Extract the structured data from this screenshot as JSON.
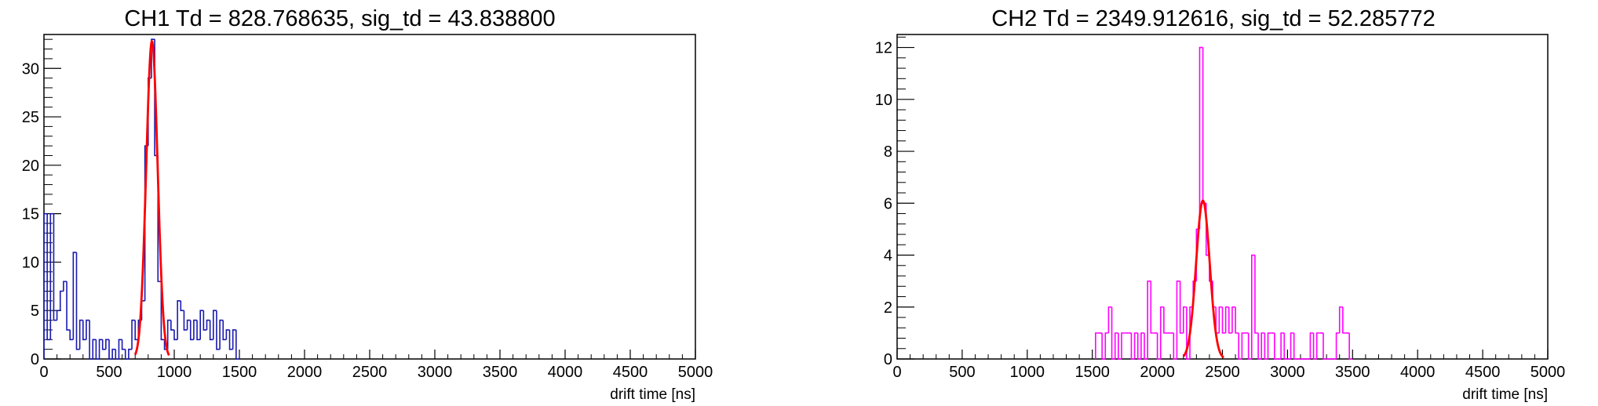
{
  "chart_data": [
    {
      "type": "histogram",
      "title": "CH1 Td = 828.768635, sig_td = 43.838800",
      "xlabel": "drift time [ns]",
      "ylabel": "",
      "xlim": [
        0,
        5000
      ],
      "ylim": [
        0,
        33.5
      ],
      "xticks": [
        0,
        500,
        1000,
        1500,
        2000,
        2500,
        3000,
        3500,
        4000,
        4500,
        5000
      ],
      "yticks": [
        0,
        5,
        10,
        15,
        20,
        25,
        30
      ],
      "bin_width": 25,
      "colors": {
        "histogram": "#1a1ab0",
        "fit": "#ff0000"
      },
      "series": [
        {
          "kind": "histogram",
          "bins": [
            {
              "x": 0,
              "y": 15
            },
            {
              "x": 25,
              "y": 2
            },
            {
              "x": 50,
              "y": 15
            },
            {
              "x": 75,
              "y": 4
            },
            {
              "x": 100,
              "y": 5
            },
            {
              "x": 125,
              "y": 7
            },
            {
              "x": 150,
              "y": 8
            },
            {
              "x": 175,
              "y": 3
            },
            {
              "x": 200,
              "y": 2
            },
            {
              "x": 225,
              "y": 11
            },
            {
              "x": 250,
              "y": 1
            },
            {
              "x": 275,
              "y": 4
            },
            {
              "x": 300,
              "y": 2
            },
            {
              "x": 325,
              "y": 4
            },
            {
              "x": 350,
              "y": 0
            },
            {
              "x": 375,
              "y": 2
            },
            {
              "x": 400,
              "y": 0
            },
            {
              "x": 425,
              "y": 2
            },
            {
              "x": 450,
              "y": 1
            },
            {
              "x": 475,
              "y": 2
            },
            {
              "x": 500,
              "y": 0
            },
            {
              "x": 525,
              "y": 1
            },
            {
              "x": 550,
              "y": 0
            },
            {
              "x": 575,
              "y": 2
            },
            {
              "x": 600,
              "y": 1
            },
            {
              "x": 625,
              "y": 0
            },
            {
              "x": 650,
              "y": 1
            },
            {
              "x": 675,
              "y": 4
            },
            {
              "x": 700,
              "y": 2
            },
            {
              "x": 725,
              "y": 4
            },
            {
              "x": 750,
              "y": 6
            },
            {
              "x": 775,
              "y": 22
            },
            {
              "x": 800,
              "y": 29
            },
            {
              "x": 825,
              "y": 33
            },
            {
              "x": 850,
              "y": 21
            },
            {
              "x": 875,
              "y": 8
            },
            {
              "x": 900,
              "y": 2
            },
            {
              "x": 925,
              "y": 1
            },
            {
              "x": 950,
              "y": 4
            },
            {
              "x": 975,
              "y": 3
            },
            {
              "x": 1000,
              "y": 2
            },
            {
              "x": 1025,
              "y": 6
            },
            {
              "x": 1050,
              "y": 5
            },
            {
              "x": 1075,
              "y": 3
            },
            {
              "x": 1100,
              "y": 4
            },
            {
              "x": 1125,
              "y": 2
            },
            {
              "x": 1150,
              "y": 4
            },
            {
              "x": 1175,
              "y": 2
            },
            {
              "x": 1200,
              "y": 5
            },
            {
              "x": 1225,
              "y": 3
            },
            {
              "x": 1250,
              "y": 4
            },
            {
              "x": 1275,
              "y": 2
            },
            {
              "x": 1300,
              "y": 5
            },
            {
              "x": 1325,
              "y": 1
            },
            {
              "x": 1350,
              "y": 4
            },
            {
              "x": 1375,
              "y": 2
            },
            {
              "x": 1400,
              "y": 3
            },
            {
              "x": 1425,
              "y": 1
            },
            {
              "x": 1450,
              "y": 3
            },
            {
              "x": 1475,
              "y": 0
            }
          ]
        },
        {
          "kind": "gaussian_fit",
          "amplitude": 32.8,
          "mean": 828.768635,
          "sigma": 43.8388,
          "x_range": [
            700,
            960
          ]
        }
      ]
    },
    {
      "type": "histogram",
      "title": "CH2 Td = 2349.912616, sig_td = 52.285772",
      "xlabel": "drift time [ns]",
      "ylabel": "",
      "xlim": [
        0,
        5000
      ],
      "ylim": [
        0,
        12.5
      ],
      "xticks": [
        0,
        500,
        1000,
        1500,
        2000,
        2500,
        3000,
        3500,
        4000,
        4500,
        5000
      ],
      "yticks": [
        0,
        2,
        4,
        6,
        8,
        10,
        12
      ],
      "bin_width": 25,
      "colors": {
        "histogram": "#ff00ff",
        "fit": "#ff0000"
      },
      "series": [
        {
          "kind": "histogram",
          "bins": [
            {
              "x": 1525,
              "y": 1
            },
            {
              "x": 1550,
              "y": 1
            },
            {
              "x": 1575,
              "y": 0
            },
            {
              "x": 1600,
              "y": 1
            },
            {
              "x": 1625,
              "y": 2
            },
            {
              "x": 1650,
              "y": 0
            },
            {
              "x": 1675,
              "y": 1
            },
            {
              "x": 1700,
              "y": 0
            },
            {
              "x": 1725,
              "y": 1
            },
            {
              "x": 1750,
              "y": 1
            },
            {
              "x": 1775,
              "y": 1
            },
            {
              "x": 1800,
              "y": 0
            },
            {
              "x": 1825,
              "y": 1
            },
            {
              "x": 1850,
              "y": 0
            },
            {
              "x": 1875,
              "y": 1
            },
            {
              "x": 1900,
              "y": 0
            },
            {
              "x": 1925,
              "y": 3
            },
            {
              "x": 1950,
              "y": 1
            },
            {
              "x": 1975,
              "y": 1
            },
            {
              "x": 2000,
              "y": 0
            },
            {
              "x": 2025,
              "y": 2
            },
            {
              "x": 2050,
              "y": 1
            },
            {
              "x": 2075,
              "y": 1
            },
            {
              "x": 2100,
              "y": 1
            },
            {
              "x": 2125,
              "y": 0
            },
            {
              "x": 2150,
              "y": 3
            },
            {
              "x": 2175,
              "y": 1
            },
            {
              "x": 2200,
              "y": 2
            },
            {
              "x": 2225,
              "y": 0
            },
            {
              "x": 2250,
              "y": 2
            },
            {
              "x": 2275,
              "y": 3
            },
            {
              "x": 2300,
              "y": 5
            },
            {
              "x": 2325,
              "y": 12
            },
            {
              "x": 2350,
              "y": 6
            },
            {
              "x": 2375,
              "y": 4
            },
            {
              "x": 2400,
              "y": 3
            },
            {
              "x": 2425,
              "y": 2
            },
            {
              "x": 2450,
              "y": 1
            },
            {
              "x": 2475,
              "y": 2
            },
            {
              "x": 2500,
              "y": 1
            },
            {
              "x": 2525,
              "y": 2
            },
            {
              "x": 2550,
              "y": 1
            },
            {
              "x": 2575,
              "y": 2
            },
            {
              "x": 2600,
              "y": 1
            },
            {
              "x": 2625,
              "y": 0
            },
            {
              "x": 2650,
              "y": 1
            },
            {
              "x": 2675,
              "y": 1
            },
            {
              "x": 2700,
              "y": 0
            },
            {
              "x": 2725,
              "y": 4
            },
            {
              "x": 2750,
              "y": 1
            },
            {
              "x": 2775,
              "y": 0
            },
            {
              "x": 2800,
              "y": 1
            },
            {
              "x": 2825,
              "y": 0
            },
            {
              "x": 2850,
              "y": 1
            },
            {
              "x": 2875,
              "y": 1
            },
            {
              "x": 2900,
              "y": 0
            },
            {
              "x": 2925,
              "y": 0
            },
            {
              "x": 2950,
              "y": 1
            },
            {
              "x": 2975,
              "y": 0
            },
            {
              "x": 3000,
              "y": 0
            },
            {
              "x": 3025,
              "y": 1
            },
            {
              "x": 3050,
              "y": 0
            },
            {
              "x": 3075,
              "y": 0
            },
            {
              "x": 3100,
              "y": 0
            },
            {
              "x": 3125,
              "y": 0
            },
            {
              "x": 3150,
              "y": 0
            },
            {
              "x": 3175,
              "y": 1
            },
            {
              "x": 3200,
              "y": 0
            },
            {
              "x": 3225,
              "y": 1
            },
            {
              "x": 3250,
              "y": 1
            },
            {
              "x": 3275,
              "y": 0
            },
            {
              "x": 3300,
              "y": 0
            },
            {
              "x": 3325,
              "y": 0
            },
            {
              "x": 3350,
              "y": 0
            },
            {
              "x": 3375,
              "y": 1
            },
            {
              "x": 3400,
              "y": 2
            },
            {
              "x": 3425,
              "y": 1
            },
            {
              "x": 3450,
              "y": 1
            },
            {
              "x": 3475,
              "y": 0
            }
          ]
        },
        {
          "kind": "gaussian_fit",
          "amplitude": 6.1,
          "mean": 2349.912616,
          "sigma": 52.285772,
          "x_range": [
            2200,
            2510
          ]
        }
      ]
    }
  ]
}
